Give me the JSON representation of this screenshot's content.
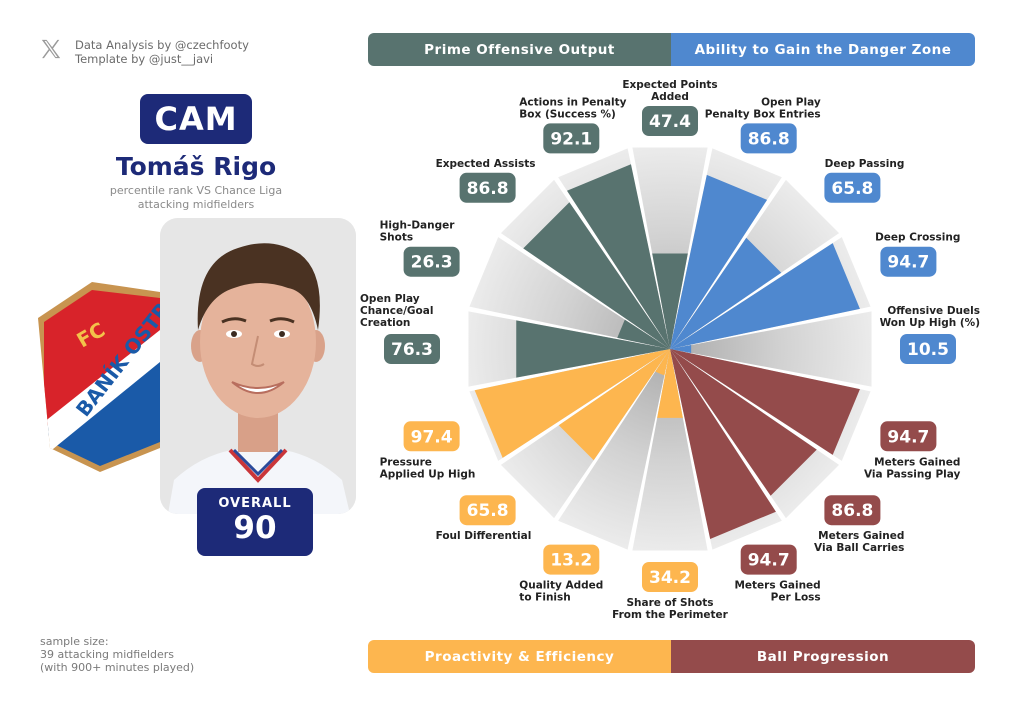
{
  "credits": {
    "line1": "Data Analysis by @czechfooty",
    "line2": "Template by @just__javi"
  },
  "player": {
    "position": "CAM",
    "name": "Tomáš Rigo",
    "subtitle_line1": "percentile rank VS Chance Liga",
    "subtitle_line2": "attacking midfielders",
    "overall_label": "OVERALL",
    "overall_value": "90",
    "club_crest_text_fc": "FC",
    "club_crest_text": "BANÍK OSTR"
  },
  "sample": {
    "line1": "sample size:",
    "line2": "39 attacking midfielders",
    "line3": "(with 900+ minutes played)"
  },
  "categories": {
    "prime": "Prime Offensive Output",
    "danger": "Ability to Gain the Danger Zone",
    "proactivity": "Proactivity & Efficiency",
    "progression": "Ball Progression"
  },
  "colors": {
    "prime": "#58736f",
    "danger": "#4f88cf",
    "proactivity": "#fdb64f",
    "progression": "#944b4b",
    "navy": "#1d2a78"
  },
  "chart_data": {
    "type": "radial-bar",
    "range": [
      0,
      100
    ],
    "metrics": [
      {
        "label": [
          "Expected Points",
          "Added"
        ],
        "value": 47.4,
        "group": "prime"
      },
      {
        "label": [
          "Open Play",
          "Penalty Box Entries"
        ],
        "value": 86.8,
        "group": "danger"
      },
      {
        "label": [
          "Deep Passing"
        ],
        "value": 65.8,
        "group": "danger"
      },
      {
        "label": [
          "Deep Crossing"
        ],
        "value": 94.7,
        "group": "danger"
      },
      {
        "label": [
          "Offensive Duels",
          "Won Up High (%)"
        ],
        "value": 10.5,
        "group": "danger"
      },
      {
        "label": [
          "Meters Gained",
          "Via Passing Play"
        ],
        "value": 94.7,
        "group": "progression"
      },
      {
        "label": [
          "Meters Gained",
          "Via Ball Carries"
        ],
        "value": 86.8,
        "group": "progression"
      },
      {
        "label": [
          "Meters Gained",
          "Per Loss"
        ],
        "value": 94.7,
        "group": "progression"
      },
      {
        "label": [
          "Share of Shots",
          "From the Perimeter"
        ],
        "value": 34.2,
        "group": "proactivity"
      },
      {
        "label": [
          "Quality Added",
          "to Finish"
        ],
        "value": 13.2,
        "group": "proactivity"
      },
      {
        "label": [
          "Foul Differential"
        ],
        "value": 65.8,
        "group": "proactivity"
      },
      {
        "label": [
          "Pressure",
          "Applied Up High"
        ],
        "value": 97.4,
        "group": "proactivity"
      },
      {
        "label": [
          "Open Play",
          "Chance/Goal",
          "Creation"
        ],
        "value": 76.3,
        "group": "prime"
      },
      {
        "label": [
          "High-Danger",
          "Shots"
        ],
        "value": 26.3,
        "group": "prime"
      },
      {
        "label": [
          "Expected Assists"
        ],
        "value": 86.8,
        "group": "prime"
      },
      {
        "label": [
          "Actions in Penalty",
          "Box (Success %)"
        ],
        "value": 92.1,
        "group": "prime"
      }
    ]
  }
}
